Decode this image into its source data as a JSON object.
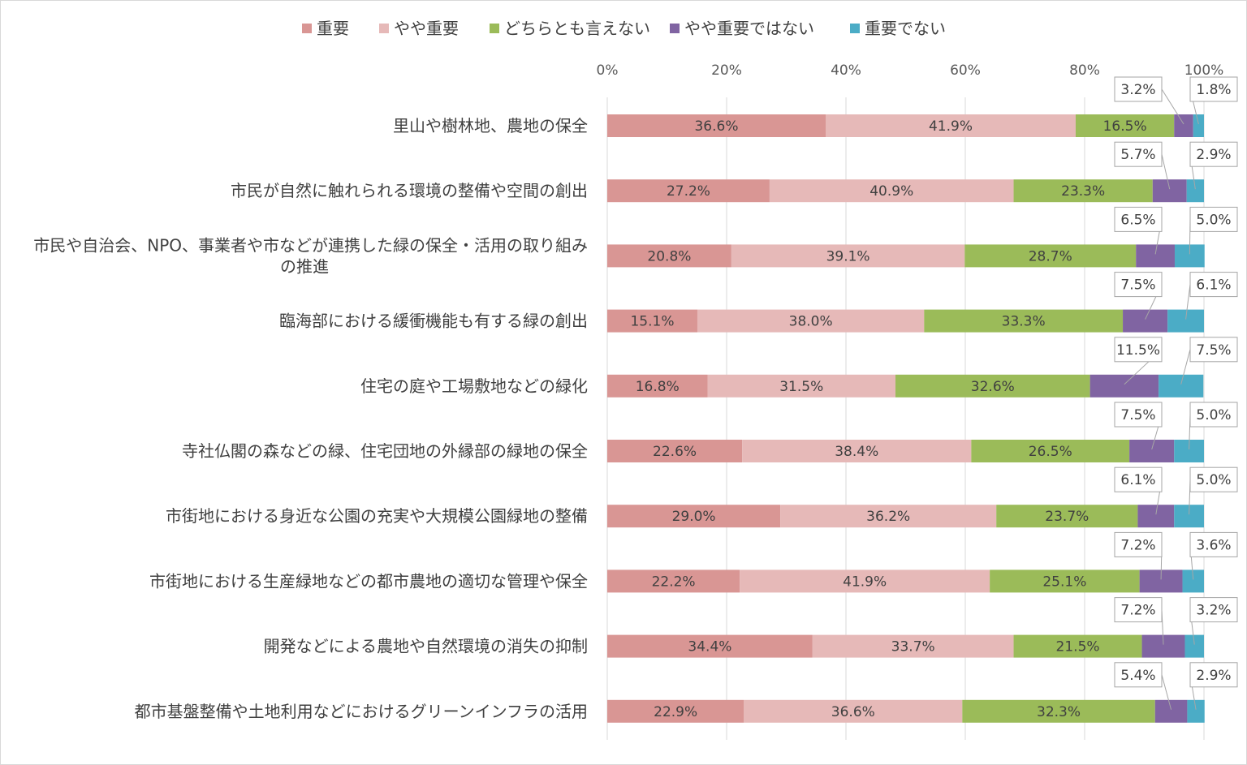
{
  "chart_data": {
    "type": "bar",
    "orientation": "horizontal",
    "stacked": "percent",
    "legend_position": "top",
    "grid": true,
    "xlim": [
      0,
      100
    ],
    "ticks": [
      0,
      20,
      40,
      60,
      80,
      100
    ],
    "tick_labels": [
      "0%",
      "20%",
      "40%",
      "60%",
      "80%",
      "100%"
    ],
    "legend": [
      "重要",
      "やや重要",
      "どちらとも言えない",
      "やや重要ではない",
      "重要でない"
    ],
    "colors": [
      "#d99694",
      "#e6b9b8",
      "#9bbb59",
      "#8064a2",
      "#4bacc6"
    ],
    "categories": [
      [
        "里山や樹林地、農地の保全"
      ],
      [
        "市民が自然に触れられる環境の整備や空間の創出"
      ],
      [
        "市民や自治会、NPO、事業者や市などが連携した緑の保全・活用の取り組み",
        "の推進"
      ],
      [
        "臨海部における緩衝機能も有する緑の創出"
      ],
      [
        "住宅の庭や工場敷地などの緑化"
      ],
      [
        "寺社仏閣の森などの緑、住宅団地の外縁部の緑地の保全"
      ],
      [
        "市街地における身近な公園の充実や大規模公園緑地の整備"
      ],
      [
        "市街地における生産緑地などの都市農地の適切な管理や保全"
      ],
      [
        "開発などによる農地や自然環境の消失の抑制"
      ],
      [
        "都市基盤整備や土地利用などにおけるグリーンインフラの活用"
      ]
    ],
    "series": [
      {
        "name": "重要",
        "values": [
          36.6,
          27.2,
          20.8,
          15.1,
          16.8,
          22.6,
          29.0,
          22.2,
          34.4,
          22.9
        ]
      },
      {
        "name": "やや重要",
        "values": [
          41.9,
          40.9,
          39.1,
          38.0,
          31.5,
          38.4,
          36.2,
          41.9,
          33.7,
          36.6
        ]
      },
      {
        "name": "どちらとも言えない",
        "values": [
          16.5,
          23.3,
          28.7,
          33.3,
          32.6,
          26.5,
          23.7,
          25.1,
          21.5,
          32.3
        ]
      },
      {
        "name": "やや重要ではない",
        "values": [
          3.2,
          5.7,
          6.5,
          7.5,
          11.5,
          7.5,
          6.1,
          7.2,
          7.2,
          5.4
        ]
      },
      {
        "name": "重要でない",
        "values": [
          1.8,
          2.9,
          5.0,
          6.1,
          7.5,
          5.0,
          5.0,
          3.6,
          3.2,
          2.9
        ]
      }
    ]
  }
}
